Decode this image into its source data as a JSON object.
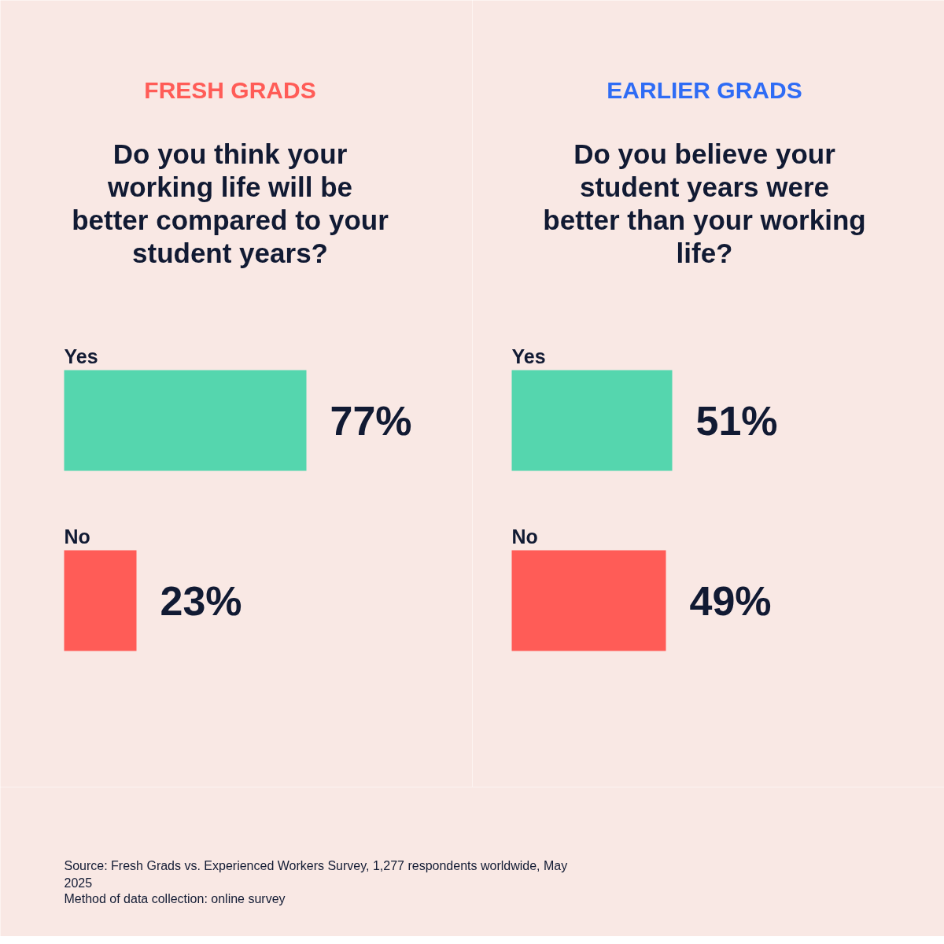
{
  "chart_data": [
    {
      "type": "bar",
      "orientation": "horizontal",
      "title": "FRESH GRADS",
      "subtitle": "Do you think your working life will be better compared to your student years?",
      "categories": [
        "Yes",
        "No"
      ],
      "values": [
        77,
        23
      ],
      "colors": [
        "#55d6ae",
        "#ff5c57"
      ],
      "value_labels": [
        "77%",
        "23%"
      ],
      "annotations": [
        "Source: Fresh Grads vs. Experienced Workers Survey, 1,277 respondents worldwide, May 2025",
        "Method of data collection: online survey"
      ]
    },
    {
      "type": "bar",
      "orientation": "horizontal",
      "title": "EARLIER GRADS",
      "subtitle": "Do you believe your student years were better than your working life?",
      "categories": [
        "Yes",
        "No"
      ],
      "values": [
        51,
        49
      ],
      "colors": [
        "#55d6ae",
        "#ff5c57"
      ],
      "value_labels": [
        "51%",
        "49%"
      ]
    }
  ]
}
